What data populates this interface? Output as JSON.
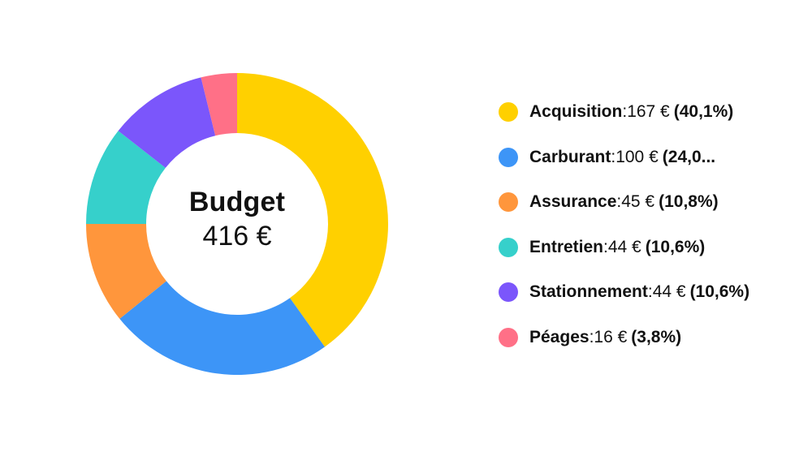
{
  "chart_data": {
    "type": "pie",
    "categories": [
      "Acquisition",
      "Carburant",
      "Assurance",
      "Entretien",
      "Stationnement",
      "Péages"
    ],
    "values": [
      167,
      100,
      45,
      44,
      44,
      16
    ],
    "colors": [
      "#FFD000",
      "#3D95F7",
      "#FF963C",
      "#36D0CB",
      "#7B56FB",
      "#FF7087"
    ],
    "center_title": "Budget",
    "center_value": "416 €",
    "legend_placement": "right"
  },
  "legend": [
    {
      "name": "Acquisition",
      "sep": " : ",
      "value": "167 €",
      "pct": "(40,1%)"
    },
    {
      "name": "Carburant",
      "sep": " : ",
      "value": "100 €",
      "pct": "(24,0..."
    },
    {
      "name": "Assurance",
      "sep": " : ",
      "value": "45 €",
      "pct": "(10,8%)"
    },
    {
      "name": "Entretien",
      "sep": " : ",
      "value": "44 €",
      "pct": "(10,6%)"
    },
    {
      "name": "Stationnement",
      "sep": " : ",
      "value": "44 €",
      "pct": "(10,6%)"
    },
    {
      "name": "Péages",
      "sep": " : ",
      "value": "16 €",
      "pct": "(3,8%)"
    }
  ]
}
